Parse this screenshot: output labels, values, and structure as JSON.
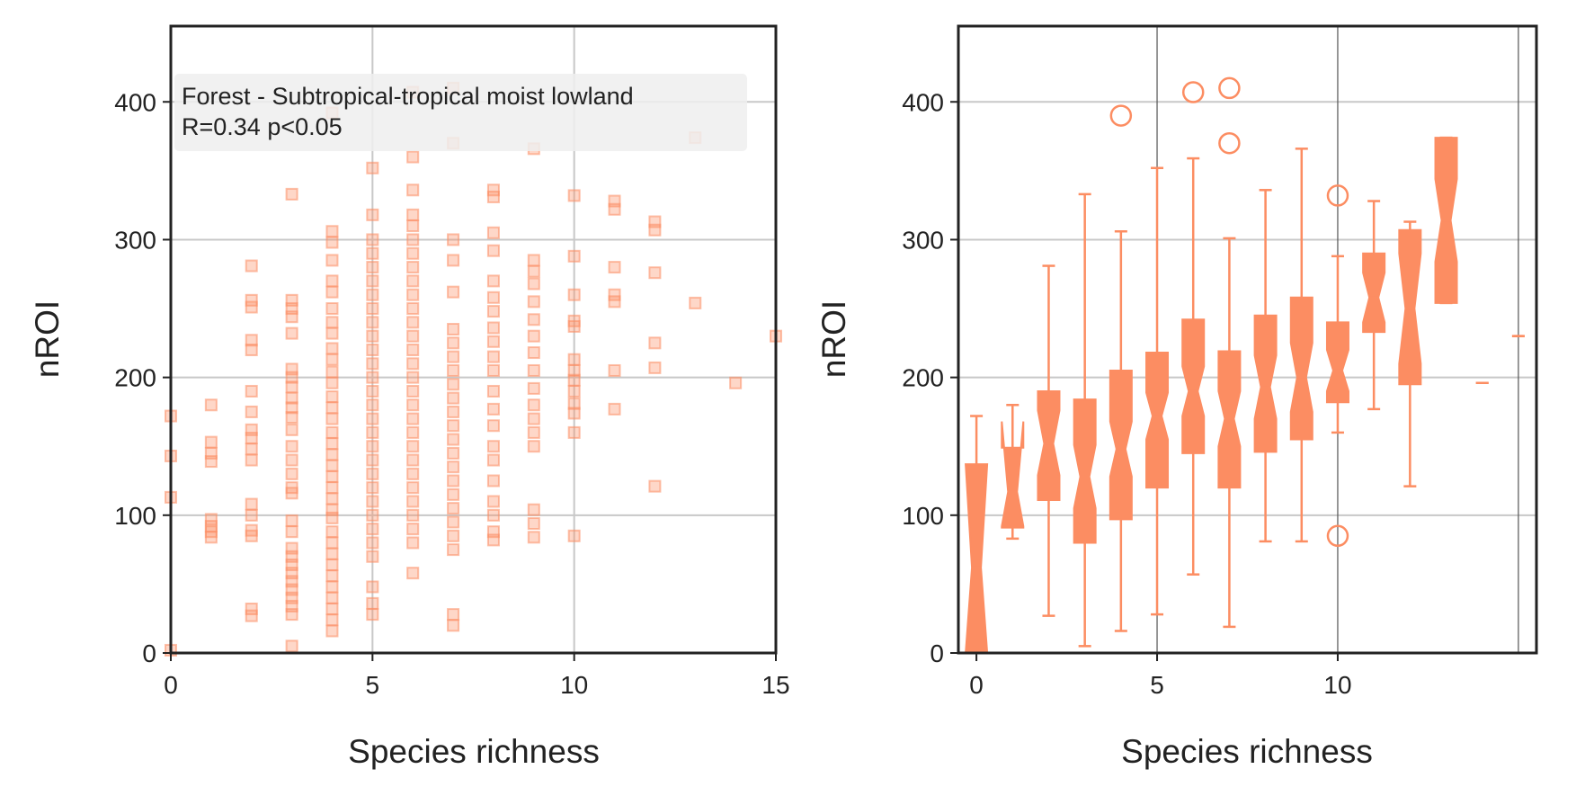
{
  "colors": {
    "marker": "#fc8d62",
    "grid": "#c8c8c8",
    "vline": "#555555",
    "axis": "#222222",
    "legend_bg": "#efefef"
  },
  "chart_data": [
    {
      "type": "scatter",
      "marker": "square",
      "xlabel": "Species richness",
      "ylabel": "nROI",
      "xlim": [
        0,
        15
      ],
      "ylim": [
        0,
        455
      ],
      "xticks": [
        "0",
        "5",
        "10",
        "15"
      ],
      "yticks": [
        "0",
        "100",
        "200",
        "300",
        "400"
      ],
      "grid": true,
      "annotation": [
        "Forest - Subtropical-tropical moist lowland",
        "R=0.34  p<0.05"
      ],
      "annotation_position": "top-left",
      "points": [
        [
          0,
          172
        ],
        [
          0,
          143
        ],
        [
          0,
          113
        ],
        [
          0,
          2
        ],
        [
          1,
          180
        ],
        [
          1,
          153
        ],
        [
          1,
          145
        ],
        [
          1,
          139
        ],
        [
          1,
          97
        ],
        [
          1,
          92
        ],
        [
          1,
          88
        ],
        [
          1,
          84
        ],
        [
          2,
          281
        ],
        [
          2,
          256
        ],
        [
          2,
          251
        ],
        [
          2,
          227
        ],
        [
          2,
          220
        ],
        [
          2,
          190
        ],
        [
          2,
          175
        ],
        [
          2,
          162
        ],
        [
          2,
          156
        ],
        [
          2,
          148
        ],
        [
          2,
          140
        ],
        [
          2,
          108
        ],
        [
          2,
          100
        ],
        [
          2,
          89
        ],
        [
          2,
          85
        ],
        [
          2,
          32
        ],
        [
          2,
          27
        ],
        [
          3,
          333
        ],
        [
          3,
          256
        ],
        [
          3,
          250
        ],
        [
          3,
          244
        ],
        [
          3,
          232
        ],
        [
          3,
          206
        ],
        [
          3,
          200
        ],
        [
          3,
          193
        ],
        [
          3,
          185
        ],
        [
          3,
          178
        ],
        [
          3,
          171
        ],
        [
          3,
          162
        ],
        [
          3,
          150
        ],
        [
          3,
          140
        ],
        [
          3,
          130
        ],
        [
          3,
          120
        ],
        [
          3,
          116
        ],
        [
          3,
          96
        ],
        [
          3,
          88
        ],
        [
          3,
          76
        ],
        [
          3,
          70
        ],
        [
          3,
          64
        ],
        [
          3,
          58
        ],
        [
          3,
          52
        ],
        [
          3,
          46
        ],
        [
          3,
          40
        ],
        [
          3,
          34
        ],
        [
          3,
          28
        ],
        [
          3,
          5
        ],
        [
          4,
          306
        ],
        [
          4,
          298
        ],
        [
          4,
          285
        ],
        [
          4,
          270
        ],
        [
          4,
          262
        ],
        [
          4,
          250
        ],
        [
          4,
          240
        ],
        [
          4,
          232
        ],
        [
          4,
          221
        ],
        [
          4,
          213
        ],
        [
          4,
          204
        ],
        [
          4,
          196
        ],
        [
          4,
          186
        ],
        [
          4,
          178
        ],
        [
          4,
          170
        ],
        [
          4,
          160
        ],
        [
          4,
          152
        ],
        [
          4,
          144
        ],
        [
          4,
          136
        ],
        [
          4,
          128
        ],
        [
          4,
          120
        ],
        [
          4,
          112
        ],
        [
          4,
          104
        ],
        [
          4,
          98
        ],
        [
          4,
          88
        ],
        [
          4,
          80
        ],
        [
          4,
          72
        ],
        [
          4,
          64
        ],
        [
          4,
          56
        ],
        [
          4,
          48
        ],
        [
          4,
          40
        ],
        [
          4,
          32
        ],
        [
          4,
          24
        ],
        [
          4,
          16
        ],
        [
          4,
          392
        ],
        [
          5,
          352
        ],
        [
          5,
          318
        ],
        [
          5,
          300
        ],
        [
          5,
          290
        ],
        [
          5,
          280
        ],
        [
          5,
          270
        ],
        [
          5,
          260
        ],
        [
          5,
          250
        ],
        [
          5,
          240
        ],
        [
          5,
          230
        ],
        [
          5,
          220
        ],
        [
          5,
          210
        ],
        [
          5,
          200
        ],
        [
          5,
          190
        ],
        [
          5,
          180
        ],
        [
          5,
          170
        ],
        [
          5,
          160
        ],
        [
          5,
          150
        ],
        [
          5,
          140
        ],
        [
          5,
          130
        ],
        [
          5,
          120
        ],
        [
          5,
          110
        ],
        [
          5,
          100
        ],
        [
          5,
          90
        ],
        [
          5,
          80
        ],
        [
          5,
          70
        ],
        [
          5,
          48
        ],
        [
          5,
          36
        ],
        [
          5,
          28
        ],
        [
          6,
          407
        ],
        [
          6,
          360
        ],
        [
          6,
          336
        ],
        [
          6,
          318
        ],
        [
          6,
          310
        ],
        [
          6,
          300
        ],
        [
          6,
          290
        ],
        [
          6,
          280
        ],
        [
          6,
          270
        ],
        [
          6,
          260
        ],
        [
          6,
          250
        ],
        [
          6,
          240
        ],
        [
          6,
          230
        ],
        [
          6,
          220
        ],
        [
          6,
          210
        ],
        [
          6,
          200
        ],
        [
          6,
          190
        ],
        [
          6,
          180
        ],
        [
          6,
          170
        ],
        [
          6,
          160
        ],
        [
          6,
          150
        ],
        [
          6,
          140
        ],
        [
          6,
          130
        ],
        [
          6,
          120
        ],
        [
          6,
          110
        ],
        [
          6,
          100
        ],
        [
          6,
          90
        ],
        [
          6,
          80
        ],
        [
          6,
          58
        ],
        [
          7,
          410
        ],
        [
          7,
          370
        ],
        [
          7,
          300
        ],
        [
          7,
          285
        ],
        [
          7,
          262
        ],
        [
          7,
          235
        ],
        [
          7,
          225
        ],
        [
          7,
          215
        ],
        [
          7,
          205
        ],
        [
          7,
          195
        ],
        [
          7,
          185
        ],
        [
          7,
          175
        ],
        [
          7,
          165
        ],
        [
          7,
          155
        ],
        [
          7,
          145
        ],
        [
          7,
          135
        ],
        [
          7,
          125
        ],
        [
          7,
          115
        ],
        [
          7,
          105
        ],
        [
          7,
          95
        ],
        [
          7,
          85
        ],
        [
          7,
          75
        ],
        [
          7,
          28
        ],
        [
          7,
          20
        ],
        [
          8,
          336
        ],
        [
          8,
          331
        ],
        [
          8,
          305
        ],
        [
          8,
          292
        ],
        [
          8,
          270
        ],
        [
          8,
          258
        ],
        [
          8,
          248
        ],
        [
          8,
          236
        ],
        [
          8,
          226
        ],
        [
          8,
          215
        ],
        [
          8,
          205
        ],
        [
          8,
          190
        ],
        [
          8,
          177
        ],
        [
          8,
          165
        ],
        [
          8,
          150
        ],
        [
          8,
          140
        ],
        [
          8,
          125
        ],
        [
          8,
          110
        ],
        [
          8,
          100
        ],
        [
          8,
          88
        ],
        [
          8,
          82
        ],
        [
          9,
          366
        ],
        [
          9,
          285
        ],
        [
          9,
          277
        ],
        [
          9,
          268
        ],
        [
          9,
          255
        ],
        [
          9,
          242
        ],
        [
          9,
          230
        ],
        [
          9,
          218
        ],
        [
          9,
          205
        ],
        [
          9,
          192
        ],
        [
          9,
          180
        ],
        [
          9,
          170
        ],
        [
          9,
          160
        ],
        [
          9,
          150
        ],
        [
          9,
          104
        ],
        [
          9,
          94
        ],
        [
          9,
          84
        ],
        [
          10,
          332
        ],
        [
          10,
          288
        ],
        [
          10,
          260
        ],
        [
          10,
          241
        ],
        [
          10,
          237
        ],
        [
          10,
          213
        ],
        [
          10,
          205
        ],
        [
          10,
          198
        ],
        [
          10,
          190
        ],
        [
          10,
          181
        ],
        [
          10,
          174
        ],
        [
          10,
          160
        ],
        [
          10,
          85
        ],
        [
          11,
          328
        ],
        [
          11,
          322
        ],
        [
          11,
          280
        ],
        [
          11,
          260
        ],
        [
          11,
          255
        ],
        [
          11,
          205
        ],
        [
          11,
          177
        ],
        [
          12,
          313
        ],
        [
          12,
          307
        ],
        [
          12,
          276
        ],
        [
          12,
          225
        ],
        [
          12,
          207
        ],
        [
          12,
          121
        ],
        [
          13,
          374
        ],
        [
          13,
          254
        ],
        [
          14,
          196
        ],
        [
          15,
          230
        ]
      ]
    },
    {
      "type": "box",
      "notched": true,
      "xlabel": "Species richness",
      "ylabel": "nROI",
      "xlim": [
        -0.5,
        15.5
      ],
      "ylim": [
        0,
        455
      ],
      "xticks": [
        "0",
        "5",
        "10"
      ],
      "yticks": [
        "0",
        "100",
        "200",
        "300",
        "400"
      ],
      "grid": true,
      "vlines": [
        5,
        10,
        15
      ],
      "boxes": [
        {
          "x": 0,
          "whislo": 0,
          "q1": 0,
          "med": 62,
          "q3": 137,
          "whishi": 172,
          "notch_lo": 0,
          "notch_hi": 137,
          "fliers": []
        },
        {
          "x": 1,
          "whislo": 83,
          "q1": 91,
          "med": 117,
          "q3": 149,
          "whishi": 180,
          "notch_lo": 92,
          "notch_hi": 168,
          "fliers": []
        },
        {
          "x": 2,
          "whislo": 27,
          "q1": 111,
          "med": 152,
          "q3": 190,
          "whishi": 281,
          "notch_lo": 129,
          "notch_hi": 176,
          "fliers": []
        },
        {
          "x": 3,
          "whislo": 5,
          "q1": 80,
          "med": 128,
          "q3": 184,
          "whishi": 333,
          "notch_lo": 105,
          "notch_hi": 151,
          "fliers": []
        },
        {
          "x": 4,
          "whislo": 16,
          "q1": 97,
          "med": 148,
          "q3": 205,
          "whishi": 306,
          "notch_lo": 128,
          "notch_hi": 168,
          "fliers": [
            390
          ]
        },
        {
          "x": 5,
          "whislo": 28,
          "q1": 120,
          "med": 172,
          "q3": 218,
          "whishi": 352,
          "notch_lo": 155,
          "notch_hi": 189,
          "fliers": []
        },
        {
          "x": 6,
          "whislo": 57,
          "q1": 145,
          "med": 190,
          "q3": 242,
          "whishi": 359,
          "notch_lo": 172,
          "notch_hi": 208,
          "fliers": [
            407
          ]
        },
        {
          "x": 7,
          "whislo": 19,
          "q1": 120,
          "med": 170,
          "q3": 219,
          "whishi": 301,
          "notch_lo": 150,
          "notch_hi": 190,
          "fliers": [
            410,
            370
          ]
        },
        {
          "x": 8,
          "whislo": 81,
          "q1": 146,
          "med": 193,
          "q3": 245,
          "whishi": 336,
          "notch_lo": 170,
          "notch_hi": 216,
          "fliers": []
        },
        {
          "x": 9,
          "whislo": 81,
          "q1": 155,
          "med": 200,
          "q3": 258,
          "whishi": 366,
          "notch_lo": 175,
          "notch_hi": 225,
          "fliers": []
        },
        {
          "x": 10,
          "whislo": 160,
          "q1": 182,
          "med": 205,
          "q3": 240,
          "whishi": 288,
          "notch_lo": 190,
          "notch_hi": 220,
          "fliers": [
            332,
            85
          ]
        },
        {
          "x": 11,
          "whislo": 177,
          "q1": 233,
          "med": 258,
          "q3": 290,
          "whishi": 328,
          "notch_lo": 240,
          "notch_hi": 276,
          "fliers": []
        },
        {
          "x": 12,
          "whislo": 121,
          "q1": 195,
          "med": 250,
          "q3": 307,
          "whishi": 313,
          "notch_lo": 210,
          "notch_hi": 290,
          "fliers": []
        },
        {
          "x": 13,
          "whislo": 254,
          "q1": 254,
          "med": 314,
          "q3": 374,
          "whishi": 374,
          "notch_lo": 284,
          "notch_hi": 344,
          "fliers": []
        },
        {
          "x": 14,
          "whislo": 196,
          "q1": 196,
          "med": 196,
          "q3": 196,
          "whishi": 196,
          "notch_lo": 196,
          "notch_hi": 196,
          "fliers": []
        },
        {
          "x": 15,
          "whislo": 230,
          "q1": 230,
          "med": 230,
          "q3": 230,
          "whishi": 230,
          "notch_lo": 230,
          "notch_hi": 230,
          "fliers": []
        }
      ]
    }
  ]
}
